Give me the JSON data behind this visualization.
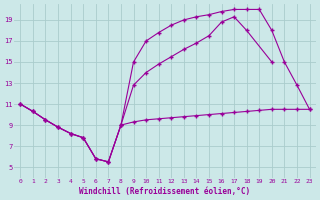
{
  "background_color": "#cce8e8",
  "grid_color": "#aacccc",
  "line_color": "#990099",
  "marker": "+",
  "xlabel": "Windchill (Refroidissement éolien,°C)",
  "xlim": [
    -0.5,
    23.5
  ],
  "ylim": [
    4,
    20.5
  ],
  "yticks": [
    5,
    7,
    9,
    11,
    13,
    15,
    17,
    19
  ],
  "xticks": [
    0,
    1,
    2,
    3,
    4,
    5,
    6,
    7,
    8,
    9,
    10,
    11,
    12,
    13,
    14,
    15,
    16,
    17,
    18,
    19,
    20,
    21,
    22,
    23
  ],
  "line1_x": [
    0,
    1,
    2,
    3,
    4,
    5,
    6,
    7,
    8,
    9,
    10,
    11,
    12,
    13,
    14,
    15,
    16,
    17,
    18,
    19,
    20,
    21,
    22,
    23
  ],
  "line1_y": [
    11.0,
    10.3,
    9.5,
    8.8,
    8.2,
    7.8,
    5.8,
    5.5,
    9.0,
    9.3,
    9.5,
    9.6,
    9.7,
    9.8,
    9.9,
    10.0,
    10.1,
    10.2,
    10.3,
    10.4,
    10.5,
    10.5,
    10.5,
    10.5
  ],
  "line2_x": [
    0,
    1,
    2,
    3,
    4,
    5,
    6,
    7,
    8,
    9,
    10,
    11,
    12,
    13,
    14,
    15,
    16,
    17,
    18,
    20
  ],
  "line2_y": [
    11.0,
    10.3,
    9.5,
    8.8,
    8.2,
    7.8,
    5.8,
    5.5,
    9.0,
    12.8,
    14.0,
    14.8,
    15.5,
    16.2,
    16.8,
    17.5,
    18.8,
    19.3,
    18.0,
    15.0
  ],
  "line3_x": [
    0,
    1,
    2,
    3,
    4,
    5,
    6,
    7,
    8,
    9,
    10,
    11,
    12,
    13,
    14,
    15,
    16,
    17,
    18,
    19,
    20,
    21,
    22,
    23
  ],
  "line3_y": [
    11.0,
    10.3,
    9.5,
    8.8,
    8.2,
    7.8,
    5.8,
    5.5,
    9.0,
    15.0,
    17.0,
    17.8,
    18.5,
    19.0,
    19.3,
    19.5,
    19.8,
    20.0,
    20.0,
    20.0,
    18.0,
    15.0,
    12.8,
    10.5
  ]
}
